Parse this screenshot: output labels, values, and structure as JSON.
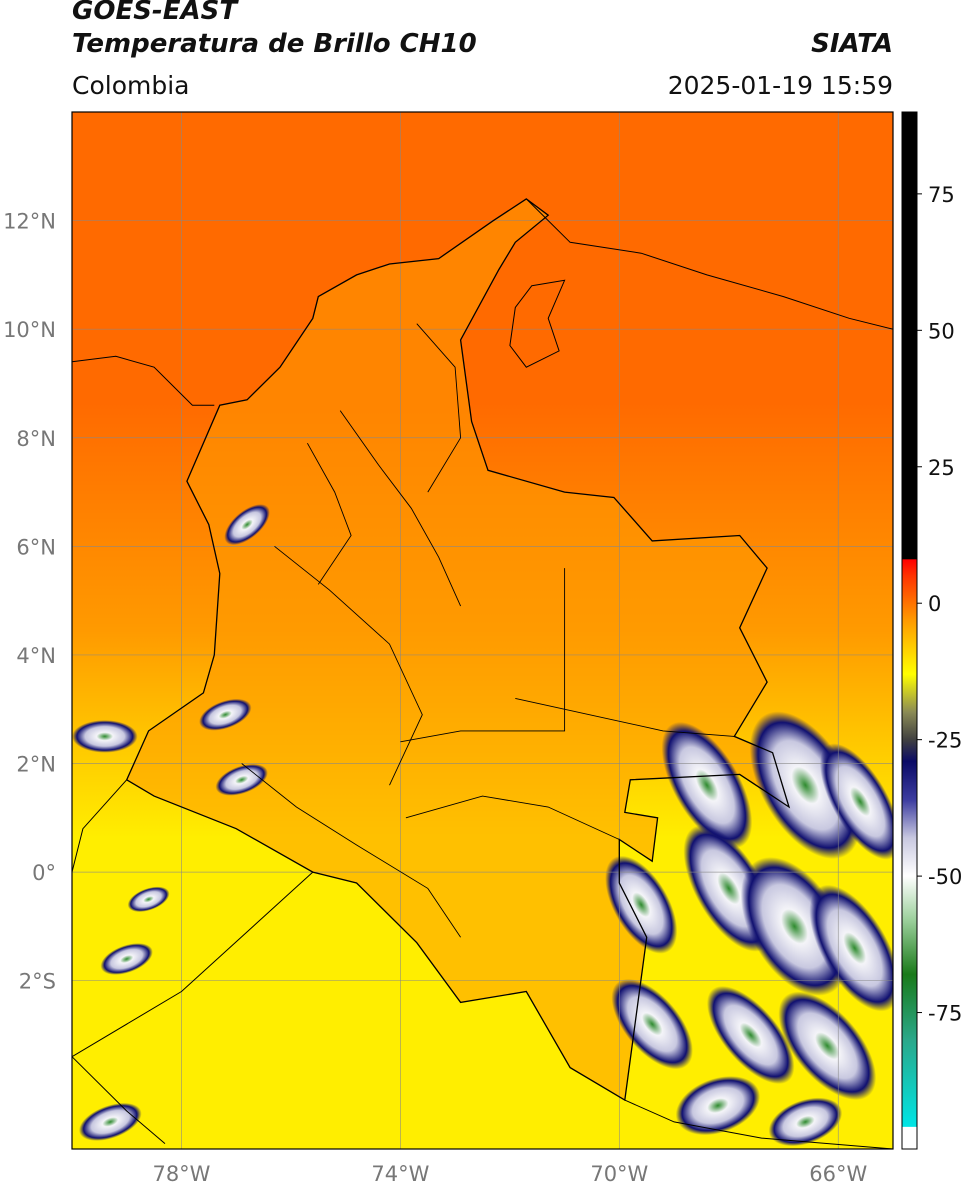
{
  "header": {
    "satellite": "GOES-EAST",
    "product": "Temperatura de Brillo CH10",
    "region": "Colombia",
    "agency": "SIATA",
    "datetime": "2025-01-19 15:59"
  },
  "map": {
    "lon_range": [
      -80,
      -65
    ],
    "lat_range": [
      -5.1,
      14
    ],
    "lon_ticks": [
      {
        "value": -78,
        "label": "78°W"
      },
      {
        "value": -74,
        "label": "74°W"
      },
      {
        "value": -70,
        "label": "70°W"
      },
      {
        "value": -66,
        "label": "66°W"
      }
    ],
    "lat_ticks": [
      {
        "value": 12,
        "label": "12°N"
      },
      {
        "value": 10,
        "label": "10°N"
      },
      {
        "value": 8,
        "label": "8°N"
      },
      {
        "value": 6,
        "label": "6°N"
      },
      {
        "value": 4,
        "label": "4°N"
      },
      {
        "value": 2,
        "label": "2°N"
      },
      {
        "value": 0,
        "label": "0°"
      },
      {
        "value": -2,
        "label": "2°S"
      }
    ],
    "colors": {
      "warm_sea": "#ff6a00",
      "orange": "#ff9a00",
      "yellow": "#ffee00",
      "cloud_navy": "#101070",
      "cloud_white": "#f4f4f8",
      "cloud_green": "#2e8b2e"
    },
    "cold_clouds": [
      {
        "lon": -68.4,
        "lat": 1.6,
        "rx": 0.6,
        "ry": 1.3,
        "rot": -30
      },
      {
        "lon": -66.6,
        "lat": 1.6,
        "rx": 0.8,
        "ry": 1.5,
        "rot": -30
      },
      {
        "lon": -65.6,
        "lat": 1.3,
        "rx": 0.5,
        "ry": 1.2,
        "rot": -30
      },
      {
        "lon": -69.6,
        "lat": -0.6,
        "rx": 0.5,
        "ry": 1.0,
        "rot": -30
      },
      {
        "lon": -68.0,
        "lat": -0.3,
        "rx": 0.6,
        "ry": 1.3,
        "rot": -30
      },
      {
        "lon": -66.8,
        "lat": -1.0,
        "rx": 0.8,
        "ry": 1.4,
        "rot": -30
      },
      {
        "lon": -65.7,
        "lat": -1.4,
        "rx": 0.6,
        "ry": 1.3,
        "rot": -30
      },
      {
        "lon": -69.4,
        "lat": -2.8,
        "rx": 0.5,
        "ry": 1.0,
        "rot": -40
      },
      {
        "lon": -67.6,
        "lat": -3.0,
        "rx": 0.5,
        "ry": 1.1,
        "rot": -40
      },
      {
        "lon": -66.2,
        "lat": -3.2,
        "rx": 0.6,
        "ry": 1.2,
        "rot": -40
      },
      {
        "lon": -68.2,
        "lat": -4.3,
        "rx": 0.8,
        "ry": 0.5,
        "rot": -20
      },
      {
        "lon": -66.6,
        "lat": -4.6,
        "rx": 0.7,
        "ry": 0.4,
        "rot": -20
      },
      {
        "lon": -79.4,
        "lat": 2.5,
        "rx": 0.6,
        "ry": 0.3,
        "rot": 0
      },
      {
        "lon": -76.8,
        "lat": 6.4,
        "rx": 0.5,
        "ry": 0.25,
        "rot": -40
      },
      {
        "lon": -77.2,
        "lat": 2.9,
        "rx": 0.5,
        "ry": 0.25,
        "rot": -20
      },
      {
        "lon": -76.9,
        "lat": 1.7,
        "rx": 0.5,
        "ry": 0.25,
        "rot": -20
      },
      {
        "lon": -78.6,
        "lat": -0.5,
        "rx": 0.4,
        "ry": 0.2,
        "rot": -20
      },
      {
        "lon": -79.0,
        "lat": -1.6,
        "rx": 0.5,
        "ry": 0.25,
        "rot": -20
      },
      {
        "lon": -79.3,
        "lat": -4.6,
        "rx": 0.6,
        "ry": 0.3,
        "rot": -20
      }
    ],
    "colombia_outline": [
      [
        -77.9,
        7.2
      ],
      [
        -77.3,
        8.6
      ],
      [
        -76.8,
        8.7
      ],
      [
        -76.2,
        9.3
      ],
      [
        -75.6,
        10.2
      ],
      [
        -75.5,
        10.6
      ],
      [
        -74.8,
        11.0
      ],
      [
        -74.2,
        11.2
      ],
      [
        -73.3,
        11.3
      ],
      [
        -72.3,
        12.0
      ],
      [
        -71.7,
        12.4
      ],
      [
        -71.3,
        12.1
      ],
      [
        -71.9,
        11.6
      ],
      [
        -72.2,
        11.1
      ],
      [
        -72.9,
        9.8
      ],
      [
        -72.7,
        8.3
      ],
      [
        -72.4,
        7.4
      ],
      [
        -71.0,
        7.0
      ],
      [
        -70.1,
        6.9
      ],
      [
        -69.4,
        6.1
      ],
      [
        -67.8,
        6.2
      ],
      [
        -67.3,
        5.6
      ],
      [
        -67.8,
        4.5
      ],
      [
        -67.3,
        3.5
      ],
      [
        -67.9,
        2.5
      ],
      [
        -67.2,
        2.2
      ],
      [
        -66.9,
        1.2
      ],
      [
        -67.8,
        1.8
      ],
      [
        -69.8,
        1.7
      ],
      [
        -69.9,
        1.1
      ],
      [
        -69.3,
        1.0
      ],
      [
        -69.4,
        0.2
      ],
      [
        -70.0,
        0.6
      ],
      [
        -70.0,
        -0.2
      ],
      [
        -69.5,
        -1.2
      ],
      [
        -69.9,
        -4.2
      ],
      [
        -70.9,
        -3.6
      ],
      [
        -71.7,
        -2.2
      ],
      [
        -72.9,
        -2.4
      ],
      [
        -73.7,
        -1.3
      ],
      [
        -74.8,
        -0.2
      ],
      [
        -75.6,
        0.0
      ],
      [
        -77.0,
        0.8
      ],
      [
        -78.5,
        1.4
      ],
      [
        -79.0,
        1.7
      ],
      [
        -78.6,
        2.6
      ],
      [
        -77.6,
        3.3
      ],
      [
        -77.4,
        4.0
      ],
      [
        -77.3,
        5.5
      ],
      [
        -77.5,
        6.4
      ]
    ],
    "region_lines": [
      [
        [
          -75.1,
          8.5
        ],
        [
          -74.4,
          7.5
        ],
        [
          -73.8,
          6.7
        ],
        [
          -73.3,
          5.8
        ],
        [
          -72.9,
          4.9
        ]
      ],
      [
        [
          -76.3,
          6.0
        ],
        [
          -75.3,
          5.2
        ],
        [
          -74.2,
          4.2
        ],
        [
          -73.6,
          2.9
        ],
        [
          -74.2,
          1.6
        ]
      ],
      [
        [
          -71.0,
          5.6
        ],
        [
          -71.0,
          2.6
        ],
        [
          -72.9,
          2.6
        ],
        [
          -74.0,
          2.4
        ]
      ],
      [
        [
          -71.9,
          3.2
        ],
        [
          -69.2,
          2.6
        ],
        [
          -67.9,
          2.5
        ]
      ],
      [
        [
          -73.9,
          1.0
        ],
        [
          -72.5,
          1.4
        ],
        [
          -71.3,
          1.2
        ],
        [
          -70.0,
          0.6
        ]
      ],
      [
        [
          -76.9,
          2.0
        ],
        [
          -75.9,
          1.2
        ],
        [
          -74.8,
          0.5
        ],
        [
          -73.5,
          -0.3
        ],
        [
          -72.9,
          -1.2
        ]
      ],
      [
        [
          -75.7,
          7.9
        ],
        [
          -75.2,
          7.0
        ],
        [
          -74.9,
          6.2
        ],
        [
          -75.5,
          5.3
        ]
      ],
      [
        [
          -73.7,
          10.1
        ],
        [
          -73.0,
          9.3
        ],
        [
          -72.9,
          8.0
        ],
        [
          -73.5,
          7.0
        ]
      ]
    ],
    "neighbor_lines": [
      [
        [
          -80.0,
          9.4
        ],
        [
          -79.2,
          9.5
        ],
        [
          -78.5,
          9.3
        ],
        [
          -77.8,
          8.6
        ],
        [
          -77.4,
          8.6
        ]
      ],
      [
        [
          -71.7,
          12.4
        ],
        [
          -70.9,
          11.6
        ],
        [
          -69.6,
          11.4
        ],
        [
          -68.4,
          11.0
        ],
        [
          -67.0,
          10.6
        ],
        [
          -65.8,
          10.2
        ],
        [
          -65.0,
          10.0
        ]
      ],
      [
        [
          -79.0,
          1.7
        ],
        [
          -79.8,
          0.8
        ],
        [
          -80.0,
          0.0
        ]
      ],
      [
        [
          -75.6,
          0.0
        ],
        [
          -78.0,
          -2.2
        ],
        [
          -80.0,
          -3.4
        ]
      ],
      [
        [
          -80.0,
          -3.4
        ],
        [
          -79.0,
          -4.4
        ],
        [
          -78.3,
          -5.0
        ]
      ],
      [
        [
          -69.9,
          -4.2
        ],
        [
          -69.0,
          -4.6
        ],
        [
          -67.4,
          -4.9
        ],
        [
          -65.0,
          -5.1
        ]
      ]
    ],
    "lake_maracaibo": [
      [
        -71.6,
        10.8
      ],
      [
        -71.0,
        10.9
      ],
      [
        -71.3,
        10.2
      ],
      [
        -71.1,
        9.6
      ],
      [
        -71.7,
        9.3
      ],
      [
        -72.0,
        9.7
      ],
      [
        -71.9,
        10.4
      ]
    ]
  },
  "colorbar": {
    "range": [
      -100,
      90
    ],
    "ticks": [
      {
        "value": 75,
        "label": "75"
      },
      {
        "value": 50,
        "label": "50"
      },
      {
        "value": 25,
        "label": "25"
      },
      {
        "value": 0,
        "label": "0"
      },
      {
        "value": -25,
        "label": "-25"
      },
      {
        "value": -50,
        "label": "-50"
      },
      {
        "value": -75,
        "label": "-75"
      }
    ],
    "stops": [
      {
        "value": -100,
        "color": "#ffffff"
      },
      {
        "value": -96,
        "color": "#ffffff"
      },
      {
        "value": -95.9,
        "color": "#00e5e5"
      },
      {
        "value": -80,
        "color": "#2aa88a"
      },
      {
        "value": -68,
        "color": "#1a7a1a"
      },
      {
        "value": -58,
        "color": "#9cd09c"
      },
      {
        "value": -50,
        "color": "#ffffff"
      },
      {
        "value": -43,
        "color": "#c8c8e0"
      },
      {
        "value": -36,
        "color": "#3c3ca0"
      },
      {
        "value": -29,
        "color": "#0a0a66"
      },
      {
        "value": -25,
        "color": "#404040"
      },
      {
        "value": -20,
        "color": "#8a8a55"
      },
      {
        "value": -13,
        "color": "#ffff00"
      },
      {
        "value": -3,
        "color": "#ff9900"
      },
      {
        "value": 5,
        "color": "#ff3300"
      },
      {
        "value": 8,
        "color": "#ff0000"
      },
      {
        "value": 8.1,
        "color": "#000000"
      },
      {
        "value": 90,
        "color": "#000000"
      }
    ]
  }
}
